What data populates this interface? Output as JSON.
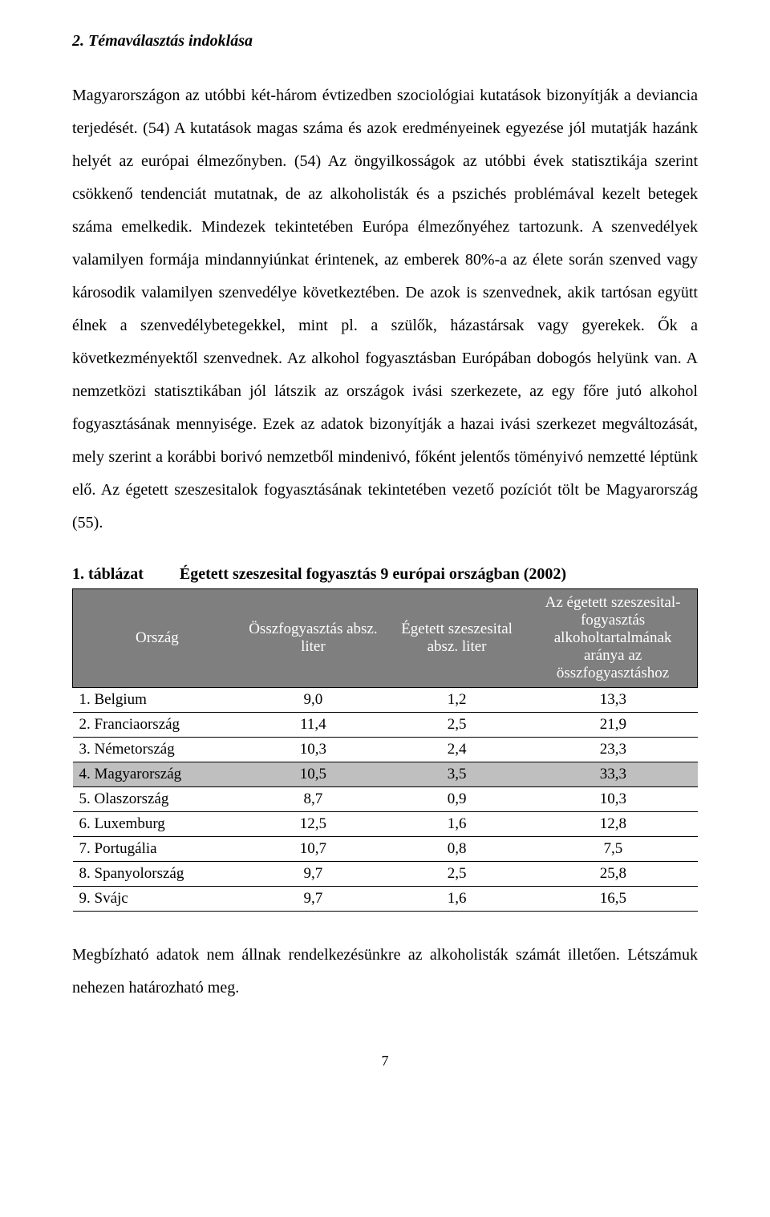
{
  "heading": "2. Témaválasztás indoklása",
  "body": "Magyarországon az utóbbi két-három évtizedben szociológiai kutatások bizonyítják a deviancia terjedését. (54) A kutatások magas száma és azok eredményeinek egyezése jól mutatják hazánk helyét az európai élmezőnyben. (54) Az öngyilkosságok az utóbbi évek statisztikája szerint csökkenő tendenciát mutatnak, de az alkoholisták és a pszichés problémával kezelt betegek száma emelkedik. Mindezek tekintetében Európa élmezőnyéhez tartozunk. A szenvedélyek valamilyen formája mindannyiúnkat érintenek, az emberek 80%-a az élete során szenved vagy károsodik valamilyen szenvedélye következtében. De azok is szenvednek, akik tartósan együtt élnek a szenvedélybetegekkel, mint pl. a szülők, házastársak vagy gyerekek. Ők a következményektől szenvednek. Az alkohol  fogyasztásban Európában dobogós helyünk van. A nemzetközi statisztikában jól látszik az országok ivási szerkezete, az egy főre jutó alkohol fogyasztásának mennyisége. Ezek az adatok bizonyítják a hazai ivási szerkezet megváltozását, mely szerint a korábbi borivó nemzetből mindenivó, főként jelentős töményivó nemzetté léptünk elő. Az égetett szeszesitalok fogyasztásának tekintetében vezető pozíciót tölt be Magyarország (55).",
  "table": {
    "caption_number": "1. táblázat",
    "caption_title": "Égetett szeszesital fogyasztás 9 európai országban (2002)",
    "columns": [
      "Ország",
      "Összfogyasztás absz. liter",
      "Égetett szeszesital absz. liter",
      "Az égetett szeszesital-fogyasztás alkoholtartalmának aránya az összfogyasztáshoz"
    ],
    "header_bg": "#7f7f7f",
    "header_fg": "#ffffff",
    "highlight_bg": "#bfbfbf",
    "rows": [
      {
        "name": "1. Belgium",
        "total": "9,0",
        "spirits": "1,2",
        "ratio": "13,3",
        "highlight": false
      },
      {
        "name": "2. Franciaország",
        "total": "11,4",
        "spirits": "2,5",
        "ratio": "21,9",
        "highlight": false
      },
      {
        "name": "3. Németország",
        "total": "10,3",
        "spirits": "2,4",
        "ratio": "23,3",
        "highlight": false
      },
      {
        "name": "4. Magyarország",
        "total": "10,5",
        "spirits": "3,5",
        "ratio": "33,3",
        "highlight": true
      },
      {
        "name": "5. Olaszország",
        "total": "8,7",
        "spirits": "0,9",
        "ratio": "10,3",
        "highlight": false
      },
      {
        "name": "6. Luxemburg",
        "total": "12,5",
        "spirits": "1,6",
        "ratio": "12,8",
        "highlight": false
      },
      {
        "name": "7. Portugália",
        "total": "10,7",
        "spirits": "0,8",
        "ratio": "7,5",
        "highlight": false
      },
      {
        "name": "8. Spanyolország",
        "total": "9,7",
        "spirits": "2,5",
        "ratio": "25,8",
        "highlight": false
      },
      {
        "name": "9. Svájc",
        "total": "9,7",
        "spirits": "1,6",
        "ratio": "16,5",
        "highlight": false
      }
    ]
  },
  "after_table": "Megbízható adatok nem állnak rendelkezésünkre az alkoholisták számát illetően. Létszámuk nehezen határozható meg.",
  "page_number": "7"
}
